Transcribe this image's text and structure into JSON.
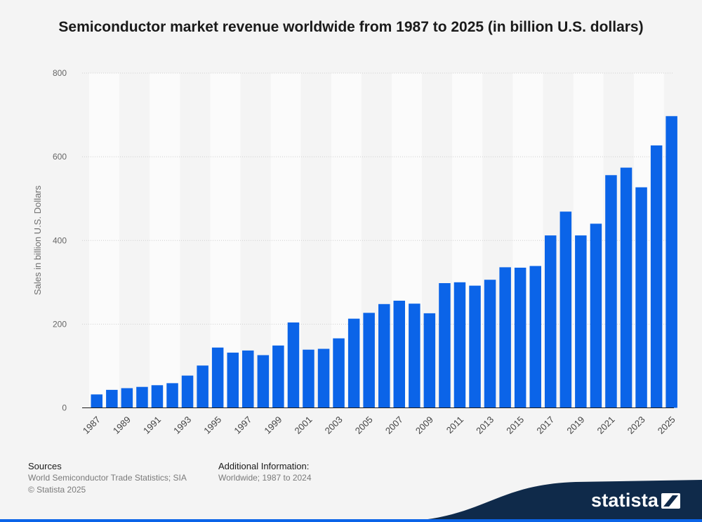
{
  "title": "Semiconductor market revenue worldwide from 1987 to 2025 (in billion U.S. dollars)",
  "chart_data": {
    "type": "bar",
    "categories": [
      "1987",
      "1988",
      "1989",
      "1990",
      "1991",
      "1992",
      "1993",
      "1994",
      "1995",
      "1996",
      "1997",
      "1998",
      "1999",
      "2000",
      "2001",
      "2002",
      "2003",
      "2004",
      "2005",
      "2006",
      "2007",
      "2008",
      "2009",
      "2010",
      "2011",
      "2012",
      "2013",
      "2014",
      "2015",
      "2016",
      "2017",
      "2018",
      "2019",
      "2020",
      "2021",
      "2022",
      "2023",
      "2024",
      "2025"
    ],
    "values": [
      32,
      43,
      47,
      50,
      54,
      59,
      77,
      101,
      144,
      132,
      137,
      126,
      149,
      204,
      139,
      141,
      166,
      213,
      227,
      248,
      256,
      249,
      226,
      298,
      300,
      292,
      306,
      336,
      335,
      339,
      412,
      469,
      412,
      440,
      556,
      574,
      527,
      627,
      697
    ],
    "ylabel": "Sales in billion U.S. Dollars",
    "xlabel": "",
    "ylim": [
      0,
      800
    ],
    "yticks": [
      0,
      200,
      400,
      600,
      800
    ],
    "xtick_labels": [
      "1987",
      "1989",
      "1991",
      "1993",
      "1995",
      "1997",
      "1999",
      "2001",
      "2003",
      "2005",
      "2007",
      "2009",
      "2011",
      "2013",
      "2015",
      "2017",
      "2019",
      "2021",
      "2023",
      "2025"
    ],
    "bar_color": "#0b64e8",
    "grid": true
  },
  "footer": {
    "sources_heading": "Sources",
    "sources_text": "World Semiconductor Trade Statistics; SIA",
    "copyright": "© Statista 2025",
    "additional_heading": "Additional Information:",
    "additional_text": "Worldwide; 1987 to 2024"
  },
  "brand": {
    "logo_text": "statista",
    "logo_color": "#0f2a4a",
    "accent": "#0b64e8"
  }
}
